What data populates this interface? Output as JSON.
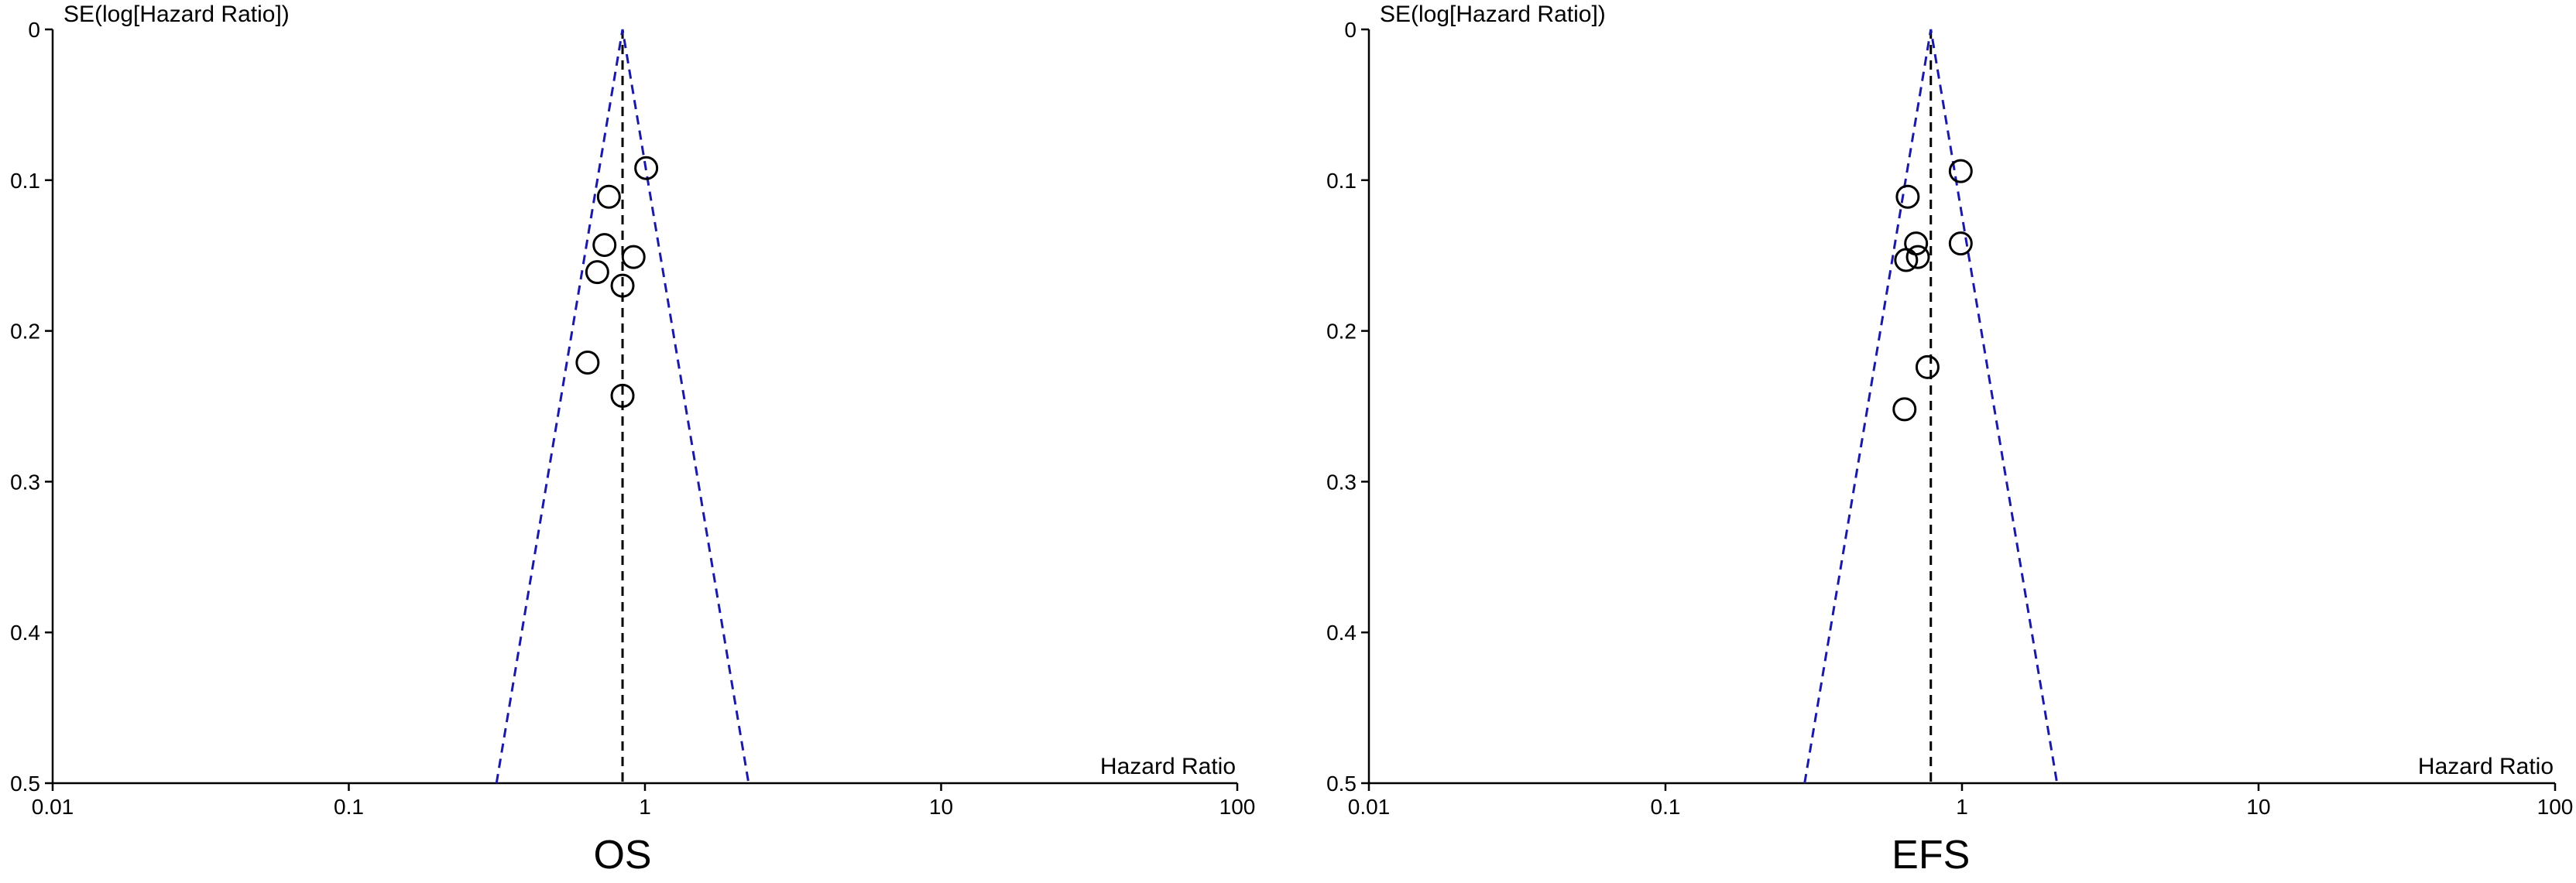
{
  "chart_data": [
    {
      "type": "funnel",
      "subtitle": "OS",
      "y_label": "SE(log[Hazard Ratio])",
      "x_label": "Hazard Ratio",
      "x_scale": "log",
      "y_reversed": true,
      "xlim": [
        0.01,
        100
      ],
      "xticks": [
        0.01,
        0.1,
        1,
        10,
        100
      ],
      "ylim": [
        0,
        0.5
      ],
      "yticks": [
        0,
        0.1,
        0.2,
        0.3,
        0.4,
        0.5
      ],
      "pooled_estimate": 0.84,
      "funnel_color": "#1a1aa6",
      "point_color": "#000000",
      "x": [
        1.01,
        0.755,
        0.73,
        0.915,
        0.69,
        0.84,
        0.64,
        0.84
      ],
      "values": [
        0.092,
        0.111,
        0.143,
        0.151,
        0.161,
        0.17,
        0.221,
        0.243
      ]
    },
    {
      "type": "funnel",
      "subtitle": "EFS",
      "y_label": "SE(log[Hazard Ratio])",
      "x_label": "Hazard Ratio",
      "x_scale": "log",
      "y_reversed": true,
      "xlim": [
        0.01,
        100
      ],
      "xticks": [
        0.01,
        0.1,
        1,
        10,
        100
      ],
      "ylim": [
        0,
        0.5
      ],
      "yticks": [
        0,
        0.1,
        0.2,
        0.3,
        0.4,
        0.5
      ],
      "pooled_estimate": 0.785,
      "funnel_color": "#1a1aa6",
      "point_color": "#000000",
      "x": [
        0.99,
        0.656,
        0.7,
        0.99,
        0.648,
        0.71,
        0.765,
        0.64
      ],
      "values": [
        0.094,
        0.111,
        0.142,
        0.142,
        0.153,
        0.151,
        0.224,
        0.252
      ]
    }
  ]
}
